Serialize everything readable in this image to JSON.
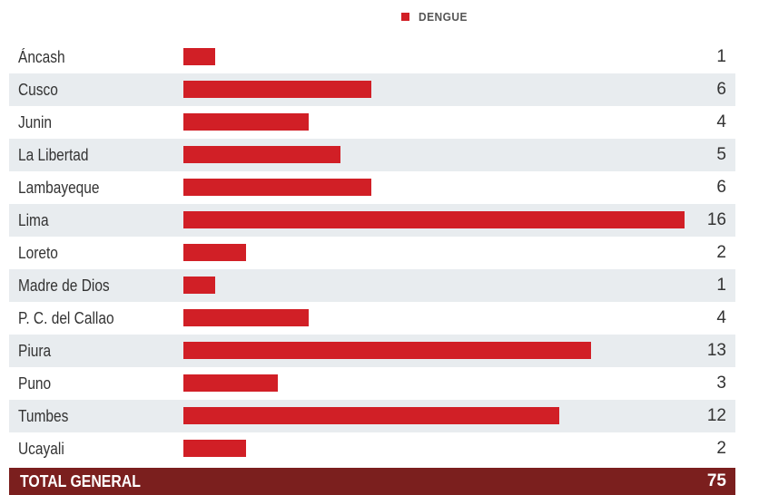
{
  "legend": {
    "label": "DENGUE"
  },
  "colors": {
    "bar": "#d11f26",
    "total_bg": "#7b1f1e",
    "stripe": "#e8ecef"
  },
  "chart_data": {
    "type": "bar",
    "orientation": "horizontal",
    "categories": [
      "Áncash",
      "Cusco",
      "Junin",
      "La Libertad",
      "Lambayeque",
      "Lima",
      "Loreto",
      "Madre de Dios",
      "P. C. del Callao",
      "Piura",
      "Puno",
      "Tumbes",
      "Ucayali"
    ],
    "series": [
      {
        "name": "DENGUE",
        "values": [
          1,
          6,
          4,
          5,
          6,
          16,
          2,
          1,
          4,
          13,
          3,
          12,
          2
        ]
      }
    ],
    "value_labels": [
      "1",
      "6",
      "4",
      "5",
      "6",
      "16",
      "2",
      "1",
      "4",
      "13",
      "3",
      "12",
      "2"
    ],
    "total": {
      "label": "TOTAL GENERAL",
      "value": "75"
    },
    "xlim": [
      0,
      16
    ],
    "legend_position": "top-center",
    "grid": false
  }
}
